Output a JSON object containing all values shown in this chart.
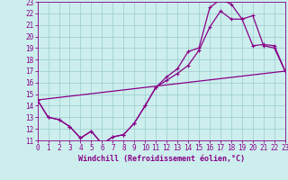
{
  "xlabel": "Windchill (Refroidissement éolien,°C)",
  "bg_color": "#cceeed",
  "line_color": "#880088",
  "grid_color": "#99cccc",
  "xlim": [
    0,
    23
  ],
  "ylim": [
    11,
    23
  ],
  "xticks": [
    0,
    1,
    2,
    3,
    4,
    5,
    6,
    7,
    8,
    9,
    10,
    11,
    12,
    13,
    14,
    15,
    16,
    17,
    18,
    19,
    20,
    21,
    22,
    23
  ],
  "yticks": [
    11,
    12,
    13,
    14,
    15,
    16,
    17,
    18,
    19,
    20,
    21,
    22,
    23
  ],
  "line1_x": [
    0,
    1,
    2,
    3,
    4,
    5,
    6,
    7,
    8,
    9,
    10,
    11,
    12,
    13,
    14,
    15,
    16,
    17,
    18,
    19,
    20,
    21,
    22,
    23
  ],
  "line1_y": [
    14.5,
    13.0,
    12.8,
    12.2,
    11.2,
    11.8,
    10.7,
    11.3,
    11.5,
    12.5,
    14.0,
    15.6,
    16.5,
    17.2,
    18.7,
    19.0,
    22.5,
    23.2,
    22.8,
    21.5,
    19.2,
    19.3,
    19.2,
    17.0
  ],
  "line2_x": [
    0,
    1,
    2,
    3,
    4,
    5,
    6,
    7,
    8,
    9,
    10,
    11,
    12,
    13,
    14,
    15,
    16,
    17,
    18,
    19,
    20,
    21,
    22,
    23
  ],
  "line2_y": [
    14.5,
    13.0,
    12.8,
    12.2,
    11.2,
    11.8,
    10.7,
    11.3,
    11.5,
    12.5,
    14.0,
    15.6,
    16.2,
    16.8,
    17.5,
    18.8,
    20.8,
    22.2,
    21.5,
    21.5,
    21.8,
    19.2,
    19.0,
    17.0
  ],
  "line3_x": [
    0,
    23
  ],
  "line3_y": [
    14.5,
    17.0
  ],
  "marker_size": 3,
  "lw": 0.9,
  "tick_fontsize": 5.5,
  "xlabel_fontsize": 6
}
